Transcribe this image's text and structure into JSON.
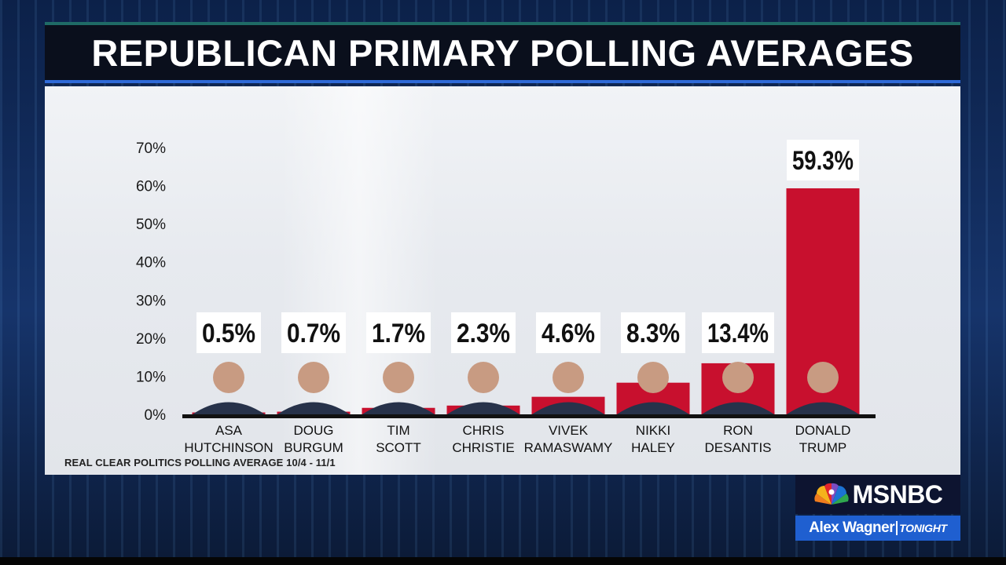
{
  "title": "REPUBLICAN PRIMARY POLLING AVERAGES",
  "source": "REAL CLEAR POLITICS POLLING AVERAGE 10/4 - 11/1",
  "branding": {
    "network": "MSNBC",
    "show_name": "Alex Wagner",
    "show_tag": "TONIGHT",
    "network_icon": "peacock-icon",
    "accent_color": "#1f5fd0"
  },
  "chart_data": {
    "type": "bar",
    "title": "REPUBLICAN PRIMARY POLLING AVERAGES",
    "xlabel": "",
    "ylabel": "",
    "ylim": [
      0,
      70
    ],
    "yticks": [
      "0%",
      "10%",
      "20%",
      "30%",
      "40%",
      "50%",
      "60%",
      "70%"
    ],
    "grid": false,
    "bar_color": "#c8102e",
    "categories": [
      [
        "ASA",
        "HUTCHINSON"
      ],
      [
        "DOUG",
        "BURGUM"
      ],
      [
        "TIM",
        "SCOTT"
      ],
      [
        "CHRIS",
        "CHRISTIE"
      ],
      [
        "VIVEK",
        "RAMASWAMY"
      ],
      [
        "NIKKI",
        "HALEY"
      ],
      [
        "RON",
        "DESANTIS"
      ],
      [
        "DONALD",
        "TRUMP"
      ]
    ],
    "values": [
      0.5,
      0.7,
      1.7,
      2.3,
      4.6,
      8.3,
      13.4,
      59.3
    ],
    "value_labels": [
      "0.5%",
      "0.7%",
      "1.7%",
      "2.3%",
      "4.6%",
      "8.3%",
      "13.4%",
      "59.3%"
    ]
  }
}
